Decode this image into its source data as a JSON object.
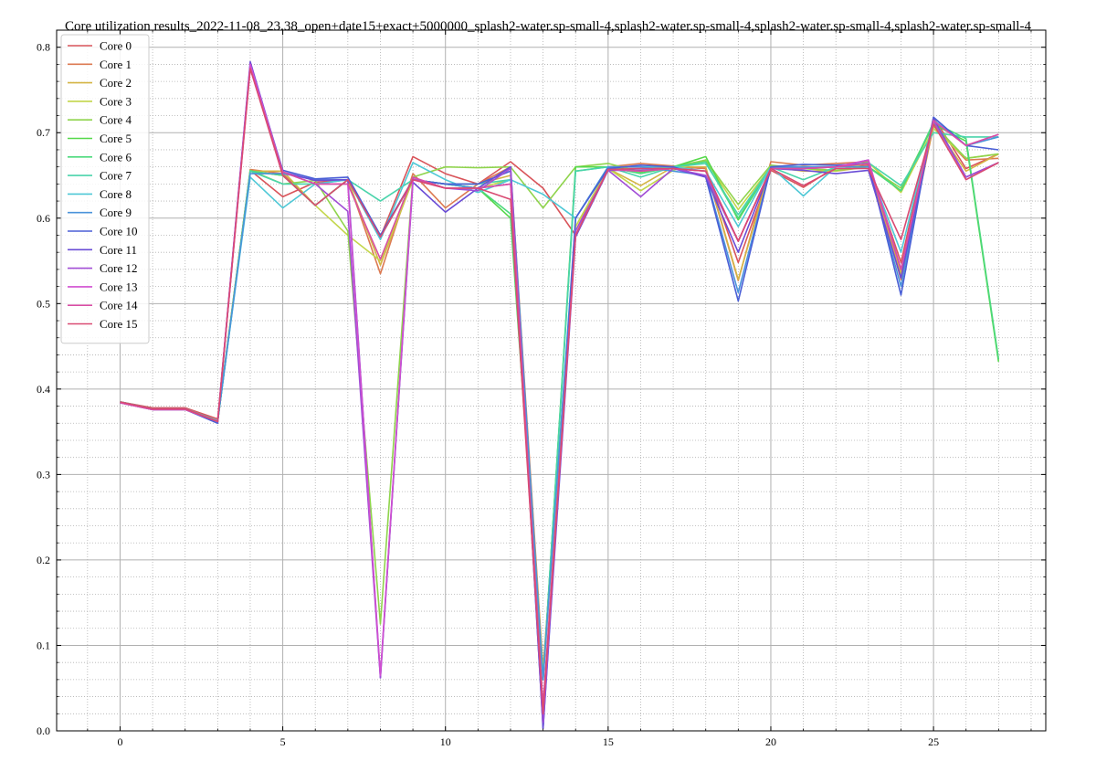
{
  "chart_data": {
    "type": "line",
    "title": "Core utilization results_2022-11-08_23.38_open+date15+exact+5000000_splash2-water.sp-small-4,splash2-water.sp-small-4,splash2-water.sp-small-4,splash2-water.sp-small-4",
    "xlabel": "",
    "ylabel": "",
    "xlim": [
      -1.95,
      28.45
    ],
    "ylim": [
      0.0,
      0.82
    ],
    "x_ticks": [
      0,
      5,
      10,
      15,
      20,
      25
    ],
    "y_ticks": [
      0.0,
      0.1,
      0.2,
      0.3,
      0.4,
      0.5,
      0.6,
      0.7,
      0.8
    ],
    "grid": true,
    "legend_position": "upper-left",
    "x": [
      0,
      1,
      2,
      3,
      4,
      5,
      6,
      7,
      8,
      9,
      10,
      11,
      12,
      13,
      14,
      15,
      16,
      17,
      18,
      19,
      20,
      21,
      22,
      23,
      24,
      25,
      26,
      27
    ],
    "series": [
      {
        "name": "Core 0",
        "color": "#d9545a",
        "values": [
          0.385,
          0.378,
          0.378,
          0.365,
          0.656,
          0.625,
          0.642,
          0.645,
          0.578,
          0.672,
          0.652,
          0.64,
          0.666,
          0.635,
          0.58,
          0.658,
          0.658,
          0.66,
          0.658,
          0.548,
          0.656,
          0.636,
          0.66,
          0.662,
          0.548,
          0.718,
          0.658,
          0.675
        ]
      },
      {
        "name": "Core 1",
        "color": "#dc7a52",
        "values": [
          0.385,
          0.377,
          0.377,
          0.363,
          0.657,
          0.652,
          0.615,
          0.645,
          0.535,
          0.652,
          0.612,
          0.64,
          0.66,
          0.072,
          0.585,
          0.66,
          0.664,
          0.661,
          0.658,
          0.527,
          0.666,
          0.662,
          0.664,
          0.666,
          0.528,
          0.708,
          0.668,
          0.67
        ]
      },
      {
        "name": "Core 2",
        "color": "#d4b444",
        "values": [
          0.385,
          0.377,
          0.377,
          0.362,
          0.655,
          0.655,
          0.615,
          0.645,
          0.545,
          0.645,
          0.64,
          0.64,
          0.65,
          0.06,
          0.59,
          0.658,
          0.638,
          0.66,
          0.66,
          0.528,
          0.66,
          0.655,
          0.655,
          0.66,
          0.535,
          0.71,
          0.655,
          0.675
        ]
      },
      {
        "name": "Core 3",
        "color": "#c3d64a",
        "values": [
          0.385,
          0.377,
          0.377,
          0.362,
          0.655,
          0.65,
          0.615,
          0.58,
          0.55,
          0.645,
          0.64,
          0.635,
          0.645,
          0.068,
          0.59,
          0.658,
          0.632,
          0.656,
          0.668,
          0.61,
          0.66,
          0.658,
          0.655,
          0.665,
          0.63,
          0.705,
          0.67,
          0.675
        ]
      },
      {
        "name": "Core 4",
        "color": "#8fd44c",
        "values": [
          0.385,
          0.377,
          0.377,
          0.362,
          0.656,
          0.64,
          0.644,
          0.585,
          0.125,
          0.648,
          0.66,
          0.659,
          0.66,
          0.612,
          0.66,
          0.664,
          0.654,
          0.66,
          0.668,
          0.616,
          0.662,
          0.658,
          0.656,
          0.66,
          0.635,
          0.71,
          0.67,
          0.675
        ]
      },
      {
        "name": "Core 5",
        "color": "#55d84a",
        "values": [
          0.385,
          0.377,
          0.377,
          0.362,
          0.655,
          0.65,
          0.615,
          0.645,
          0.578,
          0.645,
          0.64,
          0.635,
          0.6,
          0.06,
          0.66,
          0.66,
          0.654,
          0.66,
          0.672,
          0.598,
          0.66,
          0.658,
          0.66,
          0.66,
          0.632,
          0.71,
          0.69,
          0.432
        ]
      },
      {
        "name": "Core 6",
        "color": "#4cd97c",
        "values": [
          0.385,
          0.377,
          0.377,
          0.362,
          0.655,
          0.65,
          0.615,
          0.645,
          0.578,
          0.645,
          0.64,
          0.635,
          0.605,
          0.06,
          0.655,
          0.66,
          0.652,
          0.66,
          0.666,
          0.6,
          0.66,
          0.66,
          0.66,
          0.66,
          0.632,
          0.712,
          0.693,
          0.435
        ]
      },
      {
        "name": "Core 7",
        "color": "#4ad4ab",
        "values": [
          0.385,
          0.377,
          0.377,
          0.362,
          0.655,
          0.64,
          0.64,
          0.645,
          0.62,
          0.645,
          0.64,
          0.64,
          0.645,
          0.06,
          0.655,
          0.66,
          0.648,
          0.66,
          0.664,
          0.604,
          0.66,
          0.645,
          0.66,
          0.665,
          0.638,
          0.7,
          0.695,
          0.695
        ]
      },
      {
        "name": "Core 8",
        "color": "#4ec8d6",
        "values": [
          0.385,
          0.377,
          0.377,
          0.363,
          0.648,
          0.612,
          0.64,
          0.645,
          0.575,
          0.665,
          0.645,
          0.63,
          0.645,
          0.628,
          0.6,
          0.66,
          0.66,
          0.66,
          0.655,
          0.59,
          0.66,
          0.626,
          0.66,
          0.66,
          0.56,
          0.715,
          0.685,
          0.695
        ]
      },
      {
        "name": "Core 9",
        "color": "#4a93da",
        "values": [
          0.384,
          0.377,
          0.377,
          0.362,
          0.652,
          0.652,
          0.645,
          0.645,
          0.578,
          0.645,
          0.64,
          0.635,
          0.66,
          0.06,
          0.6,
          0.66,
          0.66,
          0.655,
          0.65,
          0.513,
          0.66,
          0.66,
          0.66,
          0.66,
          0.52,
          0.718,
          0.685,
          0.695
        ]
      },
      {
        "name": "Core 10",
        "color": "#4a5fd6",
        "values": [
          0.384,
          0.376,
          0.376,
          0.36,
          0.78,
          0.656,
          0.646,
          0.648,
          0.58,
          0.645,
          0.64,
          0.64,
          0.655,
          0.003,
          0.6,
          0.658,
          0.662,
          0.66,
          0.648,
          0.503,
          0.66,
          0.663,
          0.662,
          0.664,
          0.51,
          0.718,
          0.685,
          0.68
        ]
      },
      {
        "name": "Core 11",
        "color": "#6a4cd6",
        "values": [
          0.384,
          0.376,
          0.376,
          0.362,
          0.783,
          0.654,
          0.644,
          0.645,
          0.062,
          0.642,
          0.607,
          0.635,
          0.66,
          0.003,
          0.578,
          0.656,
          0.656,
          0.658,
          0.648,
          0.56,
          0.658,
          0.656,
          0.652,
          0.656,
          0.53,
          0.716,
          0.648,
          0.665
        ]
      },
      {
        "name": "Core 12",
        "color": "#a24ed6",
        "values": [
          0.384,
          0.376,
          0.376,
          0.362,
          0.78,
          0.654,
          0.64,
          0.608,
          0.062,
          0.646,
          0.635,
          0.632,
          0.658,
          0.01,
          0.585,
          0.656,
          0.625,
          0.658,
          0.65,
          0.573,
          0.658,
          0.658,
          0.66,
          0.668,
          0.54,
          0.714,
          0.648,
          0.665
        ]
      },
      {
        "name": "Core 13",
        "color": "#d04ed0",
        "values": [
          0.384,
          0.376,
          0.376,
          0.362,
          0.78,
          0.654,
          0.64,
          0.64,
          0.065,
          0.645,
          0.635,
          0.635,
          0.64,
          0.02,
          0.58,
          0.657,
          0.655,
          0.658,
          0.655,
          0.573,
          0.658,
          0.658,
          0.66,
          0.668,
          0.54,
          0.714,
          0.685,
          0.698
        ]
      },
      {
        "name": "Core 14",
        "color": "#d84ea4",
        "values": [
          0.384,
          0.376,
          0.376,
          0.362,
          0.775,
          0.654,
          0.64,
          0.64,
          0.552,
          0.648,
          0.635,
          0.635,
          0.64,
          0.03,
          0.58,
          0.657,
          0.655,
          0.658,
          0.655,
          0.573,
          0.658,
          0.658,
          0.66,
          0.664,
          0.54,
          0.714,
          0.685,
          0.698
        ]
      },
      {
        "name": "Core 15",
        "color": "#d94a72",
        "values": [
          0.385,
          0.377,
          0.377,
          0.362,
          0.775,
          0.65,
          0.615,
          0.645,
          0.578,
          0.645,
          0.635,
          0.635,
          0.622,
          0.02,
          0.58,
          0.657,
          0.658,
          0.658,
          0.655,
          0.573,
          0.658,
          0.638,
          0.658,
          0.658,
          0.575,
          0.71,
          0.645,
          0.665
        ]
      }
    ]
  }
}
